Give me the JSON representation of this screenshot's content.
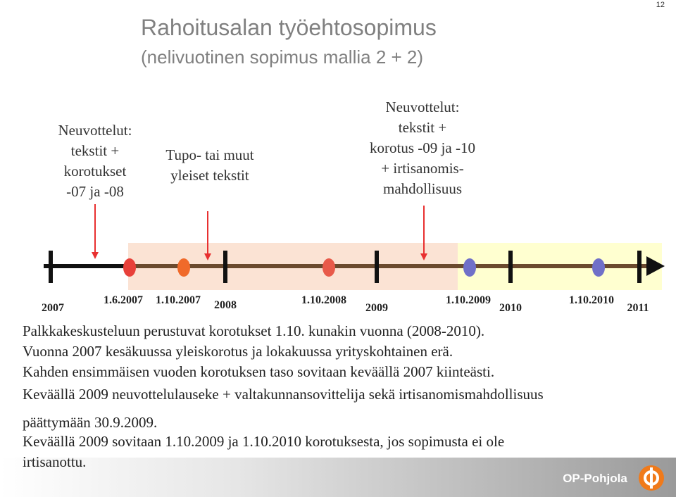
{
  "page_number": "12",
  "header": {
    "title": "Rahoitusalan työehtosopimus",
    "subtitle": "(nelivuotinen sopimus mallia 2 + 2)"
  },
  "callouts": [
    {
      "lines": [
        "Neuvottelut:",
        "tekstit +",
        "korotukset",
        "-07 ja -08"
      ]
    },
    {
      "lines": [
        "Tupo- tai muut",
        "yleiset tekstit"
      ]
    },
    {
      "lines": [
        "Neuvottelut:",
        "tekstit +",
        "korotus -09 ja -10",
        "+ irtisanomis-",
        "mahdollisuus"
      ]
    }
  ],
  "timeline": {
    "years": [
      "2007",
      "2008",
      "2009",
      "2010",
      "2011"
    ],
    "dates": [
      "1.6.2007",
      "1.10.2007",
      "1.10.2008",
      "1.10.2009",
      "1.10.2010"
    ]
  },
  "body": {
    "lines": [
      "Palkkakeskusteluun perustuvat korotukset 1.10. kunakin vuonna (2008-2010).",
      "Vuonna 2007 kesäkuussa yleiskorotus ja lokakuussa yrityskohtainen erä.",
      "Kahden ensimmäisen vuoden korotuksen taso sovitaan keväällä 2007 kiinteästi.",
      "Keväällä 2009 neuvottelulauseke + valtakunnansovittelija sekä irtisanomismahdollisuus",
      "päättymään 30.9.2009.",
      "Keväällä 2009 sovitaan 1.10.2009 ja 1.10.2010 korotuksesta, jos sopimusta ei ole",
      "irtisanottu."
    ]
  },
  "footer": {
    "logo": "OP-Pohjola"
  }
}
